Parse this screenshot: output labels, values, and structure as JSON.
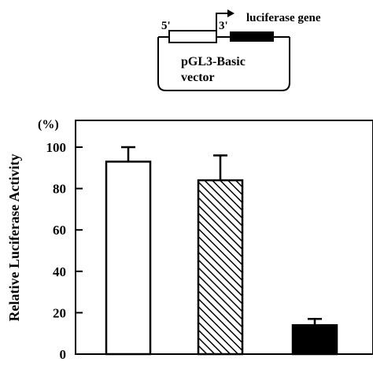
{
  "diagram": {
    "label_5prime": "5'",
    "label_3prime": "3'",
    "gene_label": "luciferase gene",
    "vector_label_line1": "pGL3-Basic",
    "vector_label_line2": "vector"
  },
  "chart_data": {
    "type": "bar",
    "ylabel": "Relative Luciferase Activity",
    "yunit": "(%)",
    "ylim": [
      0,
      110
    ],
    "yticks": [
      0,
      20,
      40,
      60,
      80,
      100
    ],
    "grid": false,
    "legend": "none",
    "categories": [
      "",
      "",
      ""
    ],
    "values": [
      93,
      84,
      14
    ],
    "errors": [
      7,
      12,
      3
    ],
    "fills": [
      "white",
      "hatched",
      "black"
    ]
  }
}
